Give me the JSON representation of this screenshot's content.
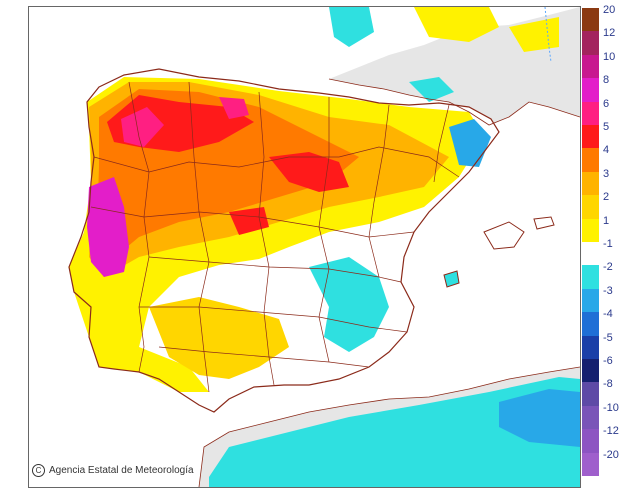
{
  "credit": {
    "copyright_symbol": "C",
    "text": "Agencia Estatal de Meteorología"
  },
  "legend": {
    "labels": [
      "20",
      "12",
      "10",
      "8",
      "6",
      "5",
      "4",
      "3",
      "2",
      "1",
      "-1",
      "-2",
      "-3",
      "-4",
      "-5",
      "-6",
      "-8",
      "-10",
      "-12",
      "-20"
    ],
    "colors": [
      "#8b3a12",
      "#a3245e",
      "#c8188f",
      "#e31ec9",
      "#ff1f82",
      "#ff1a1a",
      "#ff7a00",
      "#ffb300",
      "#ffd600",
      "#fff200",
      "#ffffff",
      "#2fe0e0",
      "#28a8e8",
      "#1f6fd6",
      "#1a3fa8",
      "#15206f",
      "#5e4aa6",
      "#7a54b8",
      "#8d54c2",
      "#9f5fcc"
    ]
  },
  "map": {
    "sea_color": "#ffffff",
    "land_outside_color": "#e6e6e6",
    "border_color": "#8b2a1a",
    "region": "Iberian Peninsula and Balearic Islands"
  }
}
